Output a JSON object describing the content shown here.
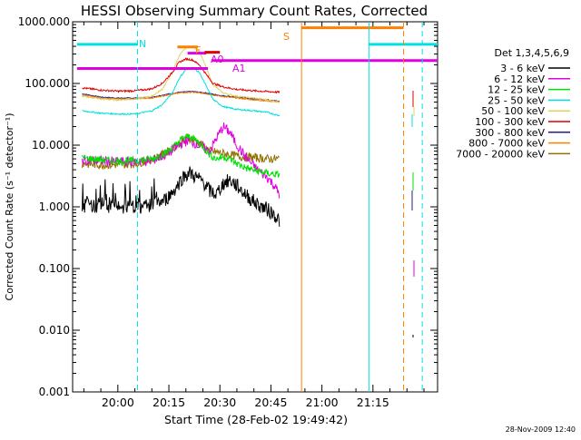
{
  "chart_data": {
    "type": "line",
    "title": "HESSI Observing Summary Count Rates, Corrected",
    "xlabel": "Start Time (28-Feb-02 19:49:42)",
    "ylabel": "Corrected Count Rate (s⁻¹ detector⁻¹)",
    "footer": "28-Nov-2009 12:40",
    "x_range_minutes": [
      19.7,
      40.3
    ],
    "x_tick_labels": [
      "20:00",
      "20:15",
      "20:30",
      "20:45",
      "21:00",
      "21:15"
    ],
    "x_tick_values_minutes": [
      0,
      15,
      30,
      45,
      60,
      75
    ],
    "y_scale": "log",
    "ylim": [
      0.001,
      1000
    ],
    "y_tick_labels": [
      "0.001",
      "0.010",
      "0.100",
      "1.000",
      "10.000",
      "100.000",
      "1000.000"
    ],
    "y_tick_values": [
      0.001,
      0.01,
      0.1,
      1,
      10,
      100,
      1000
    ],
    "legend": {
      "placement": "right",
      "header": "Det 1,3,4,5,6,9",
      "entries": [
        {
          "label": "3 - 6 keV",
          "color": "#000000"
        },
        {
          "label": "6 - 12 keV",
          "color": "#e000e0"
        },
        {
          "label": "12 - 25 keV",
          "color": "#00e000"
        },
        {
          "label": "25 - 50 keV",
          "color": "#00e0e0"
        },
        {
          "label": "50 - 100 keV",
          "color": "#e0d060"
        },
        {
          "label": "100 - 300 keV",
          "color": "#e00000"
        },
        {
          "label": "300 - 800 keV",
          "color": "#202080"
        },
        {
          "label": "800 - 7000 keV",
          "color": "#ff8000"
        },
        {
          "label": "7000 - 20000 keV",
          "color": "#907000"
        }
      ]
    },
    "series": [
      {
        "name": "3 - 6 keV",
        "color": "#000000",
        "points": [
          [
            -10.5,
            1.0
          ],
          [
            -8,
            1.1
          ],
          [
            -5,
            1.0
          ],
          [
            -2,
            1.05
          ],
          [
            0,
            1.0
          ],
          [
            5,
            1.0
          ],
          [
            10,
            1.05
          ],
          [
            14,
            1.3
          ],
          [
            17,
            2.0
          ],
          [
            19,
            3.0
          ],
          [
            21,
            3.6
          ],
          [
            23,
            3.0
          ],
          [
            25,
            2.6
          ],
          [
            27,
            1.8
          ],
          [
            29,
            1.6
          ],
          [
            31,
            2.4
          ],
          [
            33,
            2.7
          ],
          [
            35,
            2.2
          ],
          [
            38,
            1.5
          ],
          [
            41,
            1.1
          ],
          [
            44,
            0.9
          ],
          [
            46,
            0.75
          ],
          [
            47.5,
            0.6
          ]
        ]
      },
      {
        "name": "6 - 12 keV",
        "color": "#e000e0",
        "points": [
          [
            -10.5,
            5.8
          ],
          [
            -5,
            5.6
          ],
          [
            0,
            5.4
          ],
          [
            5,
            5.4
          ],
          [
            10,
            5.6
          ],
          [
            14,
            7.0
          ],
          [
            17,
            9.0
          ],
          [
            19,
            11.0
          ],
          [
            21,
            12.0
          ],
          [
            23,
            10.5
          ],
          [
            25,
            9.0
          ],
          [
            27,
            8.0
          ],
          [
            29,
            13.0
          ],
          [
            31,
            20.0
          ],
          [
            33,
            16.0
          ],
          [
            35,
            10.0
          ],
          [
            38,
            6.0
          ],
          [
            41,
            4.0
          ],
          [
            44,
            3.0
          ],
          [
            46,
            2.2
          ],
          [
            47.5,
            1.6
          ]
        ]
      },
      {
        "name": "12 - 25 keV",
        "color": "#00e000",
        "points": [
          [
            -10.5,
            6.2
          ],
          [
            -5,
            5.8
          ],
          [
            0,
            5.5
          ],
          [
            5,
            5.6
          ],
          [
            10,
            6.0
          ],
          [
            14,
            7.5
          ],
          [
            17,
            10.0
          ],
          [
            19,
            13.0
          ],
          [
            21,
            14.0
          ],
          [
            23,
            12.0
          ],
          [
            25,
            9.5
          ],
          [
            27,
            7.0
          ],
          [
            29,
            6.0
          ],
          [
            31,
            6.5
          ],
          [
            33,
            6.0
          ],
          [
            35,
            5.0
          ],
          [
            38,
            4.2
          ],
          [
            41,
            3.8
          ],
          [
            44,
            3.5
          ],
          [
            47.5,
            3.3
          ]
        ]
      },
      {
        "name": "25 - 50 keV",
        "color": "#00e0e0",
        "points": [
          [
            -10.5,
            36
          ],
          [
            -5,
            33
          ],
          [
            0,
            32
          ],
          [
            5,
            32
          ],
          [
            10,
            36
          ],
          [
            13,
            45
          ],
          [
            16,
            70
          ],
          [
            18,
            120
          ],
          [
            20,
            170
          ],
          [
            22,
            180
          ],
          [
            24,
            150
          ],
          [
            26,
            90
          ],
          [
            28,
            55
          ],
          [
            31,
            42
          ],
          [
            35,
            38
          ],
          [
            40,
            36
          ],
          [
            44,
            34
          ],
          [
            47.5,
            30
          ]
        ]
      },
      {
        "name": "50 - 100 keV",
        "color": "#e0d060",
        "points": [
          [
            -10.5,
            62
          ],
          [
            -5,
            56
          ],
          [
            0,
            54
          ],
          [
            5,
            56
          ],
          [
            10,
            62
          ],
          [
            13,
            80
          ],
          [
            16,
            150
          ],
          [
            18,
            280
          ],
          [
            20,
            380
          ],
          [
            22,
            400
          ],
          [
            24,
            330
          ],
          [
            26,
            180
          ],
          [
            28,
            95
          ],
          [
            31,
            70
          ],
          [
            35,
            62
          ],
          [
            40,
            58
          ],
          [
            44,
            54
          ],
          [
            47.5,
            50
          ]
        ]
      },
      {
        "name": "100 - 300 keV",
        "color": "#e00000",
        "points": [
          [
            -10.5,
            85
          ],
          [
            -5,
            78
          ],
          [
            0,
            75
          ],
          [
            5,
            76
          ],
          [
            10,
            82
          ],
          [
            13,
            100
          ],
          [
            16,
            150
          ],
          [
            18,
            220
          ],
          [
            20,
            250
          ],
          [
            22,
            240
          ],
          [
            24,
            200
          ],
          [
            26,
            140
          ],
          [
            28,
            100
          ],
          [
            31,
            88
          ],
          [
            35,
            80
          ],
          [
            40,
            76
          ],
          [
            44,
            74
          ],
          [
            47.5,
            72
          ]
        ]
      },
      {
        "name": "300 - 800 keV",
        "color": "#202080",
        "points": [
          [
            -10.5,
            68
          ],
          [
            -5,
            60
          ],
          [
            0,
            58
          ],
          [
            5,
            58
          ],
          [
            10,
            60
          ],
          [
            14,
            66
          ],
          [
            18,
            72
          ],
          [
            22,
            74
          ],
          [
            26,
            70
          ],
          [
            30,
            64
          ],
          [
            35,
            60
          ],
          [
            40,
            56
          ],
          [
            44,
            54
          ],
          [
            47.5,
            52
          ]
        ]
      },
      {
        "name": "800 - 7000 keV",
        "color": "#ff8000",
        "points": [
          [
            -10.5,
            65
          ],
          [
            -5,
            58
          ],
          [
            0,
            56
          ],
          [
            5,
            56
          ],
          [
            10,
            58
          ],
          [
            14,
            64
          ],
          [
            18,
            70
          ],
          [
            22,
            72
          ],
          [
            26,
            68
          ],
          [
            30,
            62
          ],
          [
            35,
            58
          ],
          [
            40,
            54
          ],
          [
            44,
            52
          ],
          [
            47.5,
            50
          ]
        ]
      },
      {
        "name": "7000 - 20000 keV",
        "color": "#907000",
        "points": [
          [
            -10.5,
            5.0
          ],
          [
            -5,
            4.8
          ],
          [
            0,
            4.8
          ],
          [
            5,
            5.0
          ],
          [
            10,
            5.8
          ],
          [
            14,
            7.5
          ],
          [
            18,
            10.5
          ],
          [
            21,
            13.0
          ],
          [
            24,
            11.0
          ],
          [
            27,
            8.0
          ],
          [
            30,
            7.5
          ],
          [
            33,
            7.0
          ],
          [
            36,
            6.5
          ],
          [
            40,
            6.3
          ],
          [
            44,
            6.0
          ],
          [
            47.5,
            6.0
          ]
        ]
      }
    ],
    "annotations": {
      "flags": [
        {
          "label": "N",
          "color": "#00e0e0"
        },
        {
          "label": "S",
          "color": "#ff8000"
        },
        {
          "label": "F",
          "color": "#ff8000"
        },
        {
          "label": "A0",
          "color": "#e000e0"
        },
        {
          "label": "A1",
          "color": "#e000e0"
        }
      ],
      "vertical_lines": [
        {
          "x": 5.8,
          "color": "#00e0e0",
          "style": "dashed"
        },
        {
          "x": 54.0,
          "color": "#ff8000",
          "style": "solid"
        },
        {
          "x": 73.8,
          "color": "#00e0e0",
          "style": "solid"
        },
        {
          "x": 84.0,
          "color": "#ff8000",
          "style": "dashed"
        },
        {
          "x": 89.5,
          "color": "#00e0e0",
          "style": "dashed"
        }
      ],
      "horizontal_bars": [
        {
          "x_start": -12,
          "x_end": 5.8,
          "y": 430,
          "color": "#00e0e0"
        },
        {
          "x_start": 73.8,
          "x_end": 94,
          "y": 430,
          "color": "#00e0e0"
        },
        {
          "x_start": 54.0,
          "x_end": 84.0,
          "y": 800,
          "color": "#ff8000"
        },
        {
          "x_start": -12,
          "x_end": 26.5,
          "y": 175,
          "color": "#e000e0"
        },
        {
          "x_start": 27.5,
          "x_end": 94,
          "y": 235,
          "color": "#e000e0"
        },
        {
          "x_start": 17.5,
          "x_end": 23.5,
          "y": 390,
          "color": "#ff8000"
        },
        {
          "x_start": 20.5,
          "x_end": 26.0,
          "y": 310,
          "color": "#e000e0"
        },
        {
          "x_start": 25.5,
          "x_end": 30.0,
          "y": 320,
          "color": "#e00000"
        }
      ]
    }
  }
}
